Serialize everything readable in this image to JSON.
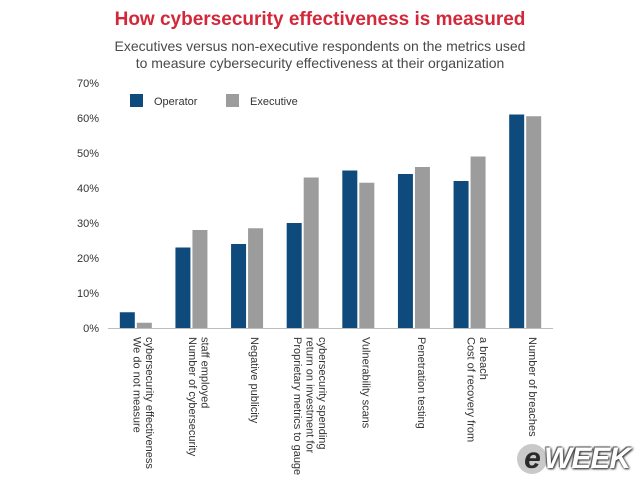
{
  "header": {
    "title": "How cybersecurity effectiveness is measured",
    "subtitle_line1": "Executives versus non-executive respondents on the metrics used",
    "subtitle_line2": "to measure cybersecurity effectiveness at their organization"
  },
  "watermark": {
    "text": "WEEK",
    "lead_letter": "e"
  },
  "chart_data": {
    "type": "bar",
    "title": "How cybersecurity effectiveness is measured",
    "subtitle": "Executives versus non-executive respondents on the metrics used to measure cybersecurity effectiveness at their organization",
    "xlabel": "",
    "ylabel": "",
    "ylim": [
      0,
      70
    ],
    "yticks": [
      "0%",
      "10%",
      "20%",
      "30%",
      "40%",
      "50%",
      "60%",
      "70%"
    ],
    "grid": false,
    "legend_position": "top-left",
    "categories": [
      [
        "We do not measure",
        "cybersecurity effectiveness"
      ],
      [
        "Number of cybersecurity",
        "staff employed"
      ],
      [
        "Negative publicity"
      ],
      [
        "Proprietary metrics to gauge",
        "return on investment for",
        "cybersecurity spending"
      ],
      [
        "Vulnerability scans"
      ],
      [
        "Penetration testing"
      ],
      [
        "Cost of recovery from",
        "a breach"
      ],
      [
        "Number of breaches"
      ]
    ],
    "series": [
      {
        "name": "Operator",
        "color": "#0f4a7d",
        "values": [
          4.5,
          23,
          24,
          30,
          45,
          44,
          42,
          61
        ]
      },
      {
        "name": "Executive",
        "color": "#9c9c9c",
        "values": [
          1.5,
          28,
          28.5,
          43,
          41.5,
          46,
          49,
          60.5
        ]
      }
    ]
  }
}
